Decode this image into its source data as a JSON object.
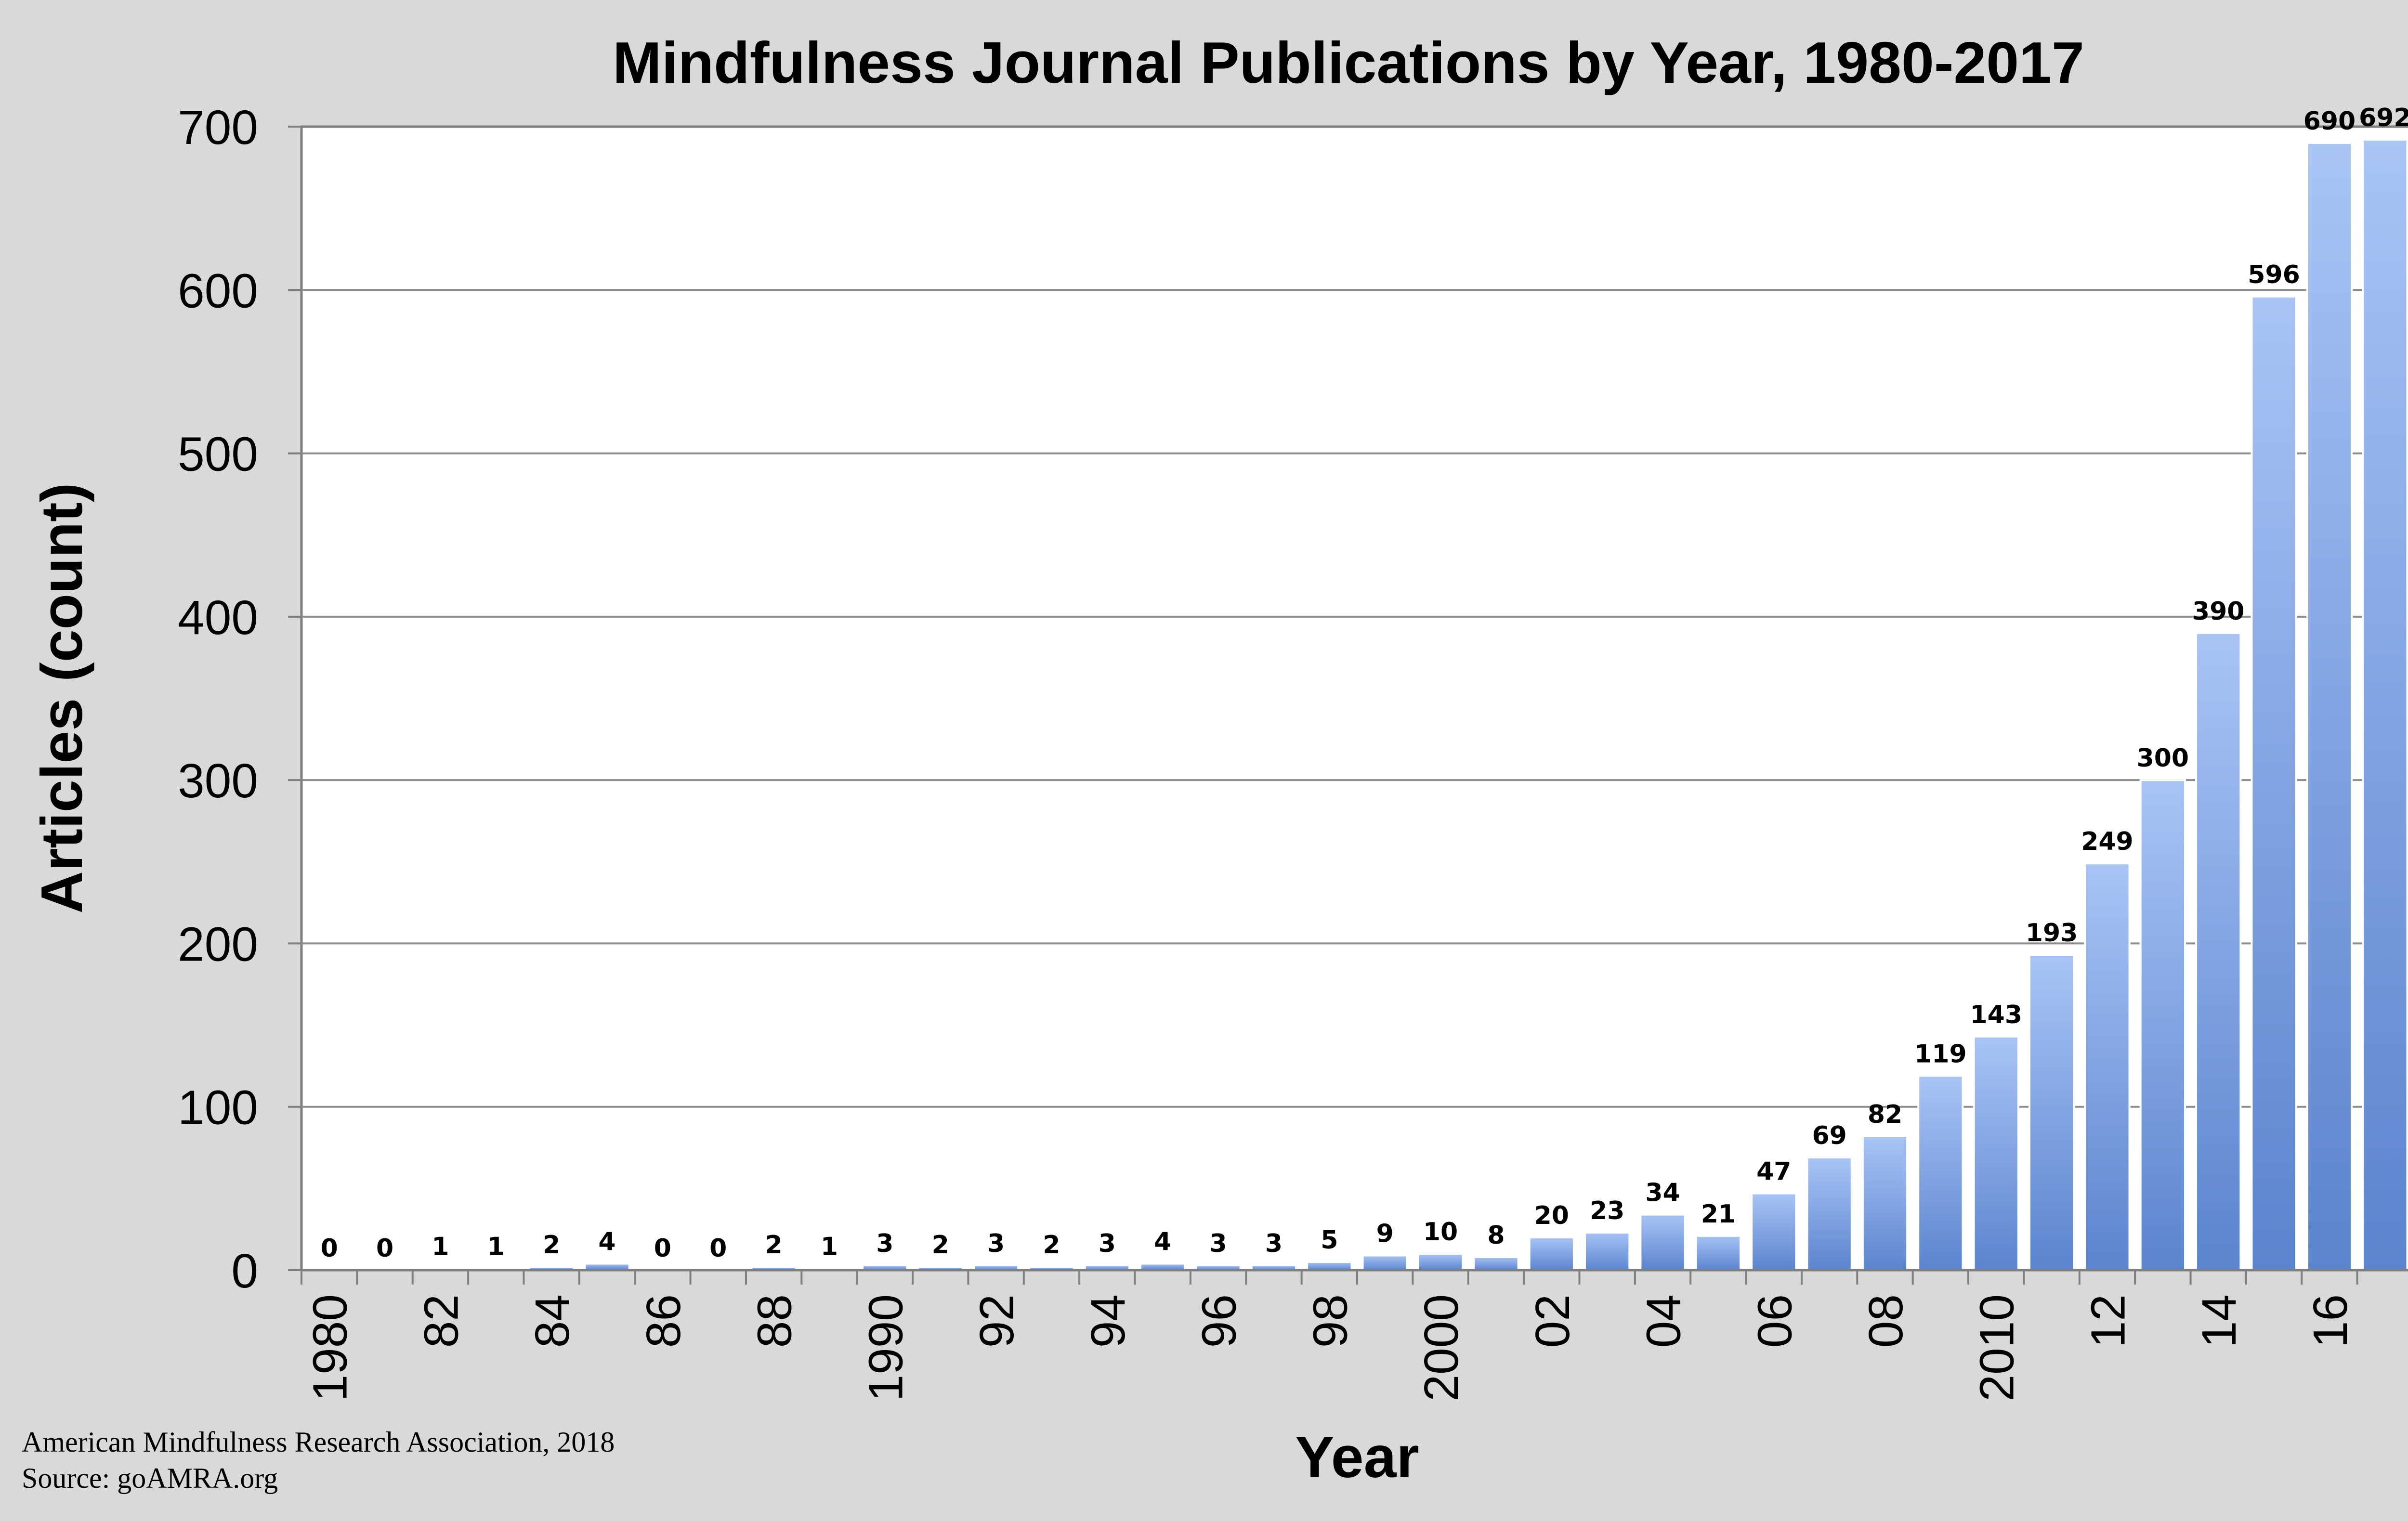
{
  "chart_data": {
    "type": "bar",
    "title": "Mindfulness Journal Publications by Year, 1980-2017",
    "xlabel": "Year",
    "ylabel": "Articles (count)",
    "ylim": [
      0,
      700
    ],
    "yticks": [
      0,
      100,
      200,
      300,
      400,
      500,
      600,
      700
    ],
    "grid": true,
    "categories": [
      "1980",
      "1981",
      "1982",
      "1983",
      "1984",
      "1985",
      "1986",
      "1987",
      "1988",
      "1989",
      "1990",
      "1991",
      "1992",
      "1993",
      "1994",
      "1995",
      "1996",
      "1997",
      "1998",
      "1999",
      "2000",
      "2001",
      "2002",
      "2003",
      "2004",
      "2005",
      "2006",
      "2007",
      "2008",
      "2009",
      "2010",
      "2011",
      "2012",
      "2013",
      "2014",
      "2015",
      "2016",
      "2017"
    ],
    "values": [
      0,
      0,
      1,
      1,
      2,
      4,
      0,
      0,
      2,
      1,
      3,
      2,
      3,
      2,
      3,
      4,
      3,
      3,
      5,
      9,
      10,
      8,
      20,
      23,
      34,
      21,
      47,
      69,
      82,
      119,
      143,
      193,
      249,
      300,
      390,
      596,
      690,
      692
    ],
    "xtick_labels": [
      "1980",
      "82",
      "84",
      "86",
      "88",
      "1990",
      "92",
      "94",
      "96",
      "98",
      "2000",
      "02",
      "04",
      "06",
      "08",
      "2010",
      "12",
      "14",
      "16"
    ],
    "bar_color_top": "#a9c4f5",
    "bar_color_bottom": "#5b84cf"
  },
  "footer": {
    "line1": "American Mindfulness Research Association, 2018",
    "line2": "Source: goAMRA.org"
  }
}
